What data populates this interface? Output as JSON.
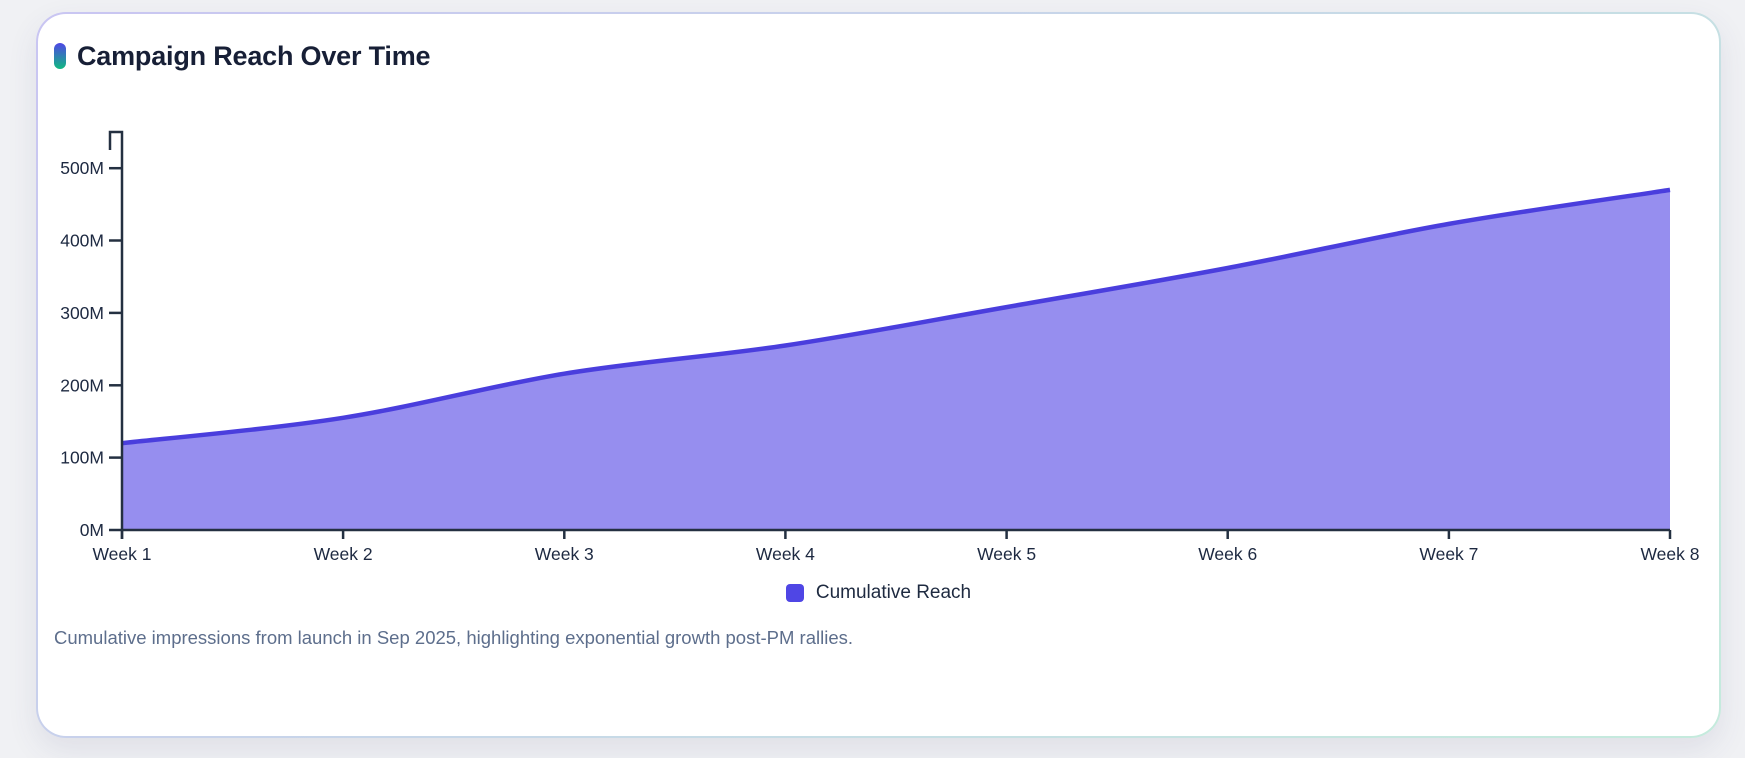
{
  "card": {
    "title": "Campaign Reach Over Time",
    "caption": "Cumulative impressions from launch in Sep 2025, highlighting exponential growth post-PM rallies."
  },
  "legend": {
    "label": "Cumulative Reach"
  },
  "chart_data": {
    "type": "area",
    "title": "Campaign Reach Over Time",
    "categories": [
      "Week 1",
      "Week 2",
      "Week 3",
      "Week 4",
      "Week 5",
      "Week 6",
      "Week 7",
      "Week 8"
    ],
    "series": [
      {
        "name": "Cumulative Reach",
        "values": [
          120,
          155,
          216,
          255,
          308,
          362,
          423,
          470
        ]
      }
    ],
    "unit": "M",
    "xlabel": "",
    "ylabel": "",
    "ylim": [
      0,
      550
    ],
    "yticks": [
      0,
      100,
      200,
      300,
      400,
      500
    ],
    "ytick_labels": [
      "0M",
      "100M",
      "200M",
      "300M",
      "400M",
      "500M"
    ],
    "grid": false,
    "legend_position": "bottom",
    "smooth": true
  },
  "colors": {
    "page_background": "#f0f1f4",
    "card_border_start": "#c9c5f2",
    "card_border_end": "#c5ebdd",
    "accent_gradient_top": "#4f46e5",
    "accent_gradient_bottom": "#10b981",
    "title_text": "#171f36",
    "axis": "#243041",
    "axis_label_text": "#1d2941",
    "line": "#4a3edd",
    "area_fill": "#968eef",
    "legend_swatch": "#4f46e5",
    "caption_text": "#5d6e8c"
  }
}
